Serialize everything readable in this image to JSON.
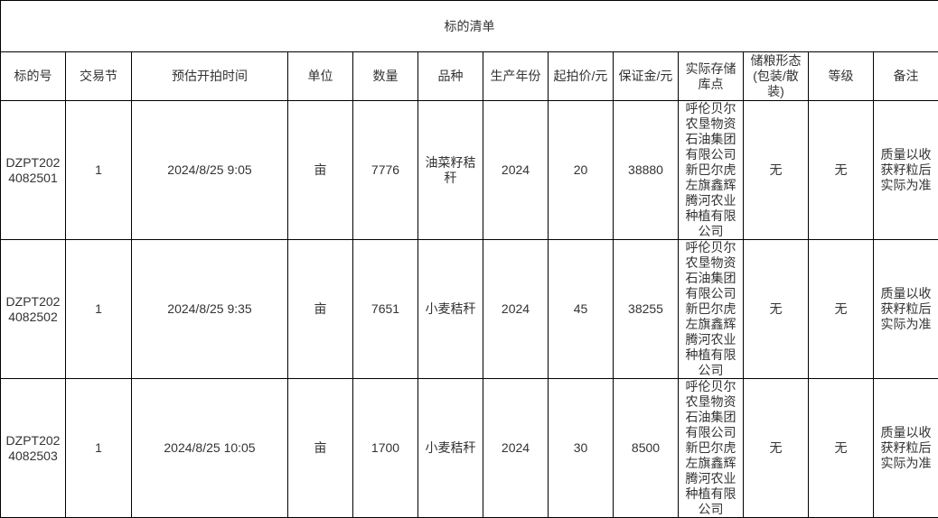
{
  "title": "标的清单",
  "headers": [
    "标的号",
    "交易节",
    "预估开拍时间",
    "单位",
    "数量",
    "品种",
    "生产年份",
    "起拍价/元",
    "保证金/元",
    "实际存储库点",
    "储粮形态(包装/散装)",
    "等级",
    "备注"
  ],
  "rows": [
    {
      "id": "DZPT2024082501",
      "session": "1",
      "time": "2024/8/25 9:05",
      "unit": "亩",
      "qty": "7776",
      "variety": "油菜籽秸秆",
      "year": "2024",
      "start_price": "20",
      "deposit": "38880",
      "warehouse": "呼伦贝尔农垦物资石油集团有限公司新巴尔虎左旗鑫辉腾河农业种植有限公司",
      "storage": "无",
      "grade": "无",
      "remark": "质量以收获籽粒后实际为准"
    },
    {
      "id": "DZPT2024082502",
      "session": "1",
      "time": "2024/8/25 9:35",
      "unit": "亩",
      "qty": "7651",
      "variety": "小麦秸秆",
      "year": "2024",
      "start_price": "45",
      "deposit": "38255",
      "warehouse": "呼伦贝尔农垦物资石油集团有限公司新巴尔虎左旗鑫辉腾河农业种植有限公司",
      "storage": "无",
      "grade": "无",
      "remark": "质量以收获籽粒后实际为准"
    },
    {
      "id": "DZPT2024082503",
      "session": "1",
      "time": "2024/8/25 10:05",
      "unit": "亩",
      "qty": "1700",
      "variety": "小麦秸秆",
      "year": "2024",
      "start_price": "30",
      "deposit": "8500",
      "warehouse": "呼伦贝尔农垦物资石油集团有限公司新巴尔虎左旗鑫辉腾河农业种植有限公司",
      "storage": "无",
      "grade": "无",
      "remark": "质量以收获籽粒后实际为准"
    }
  ]
}
